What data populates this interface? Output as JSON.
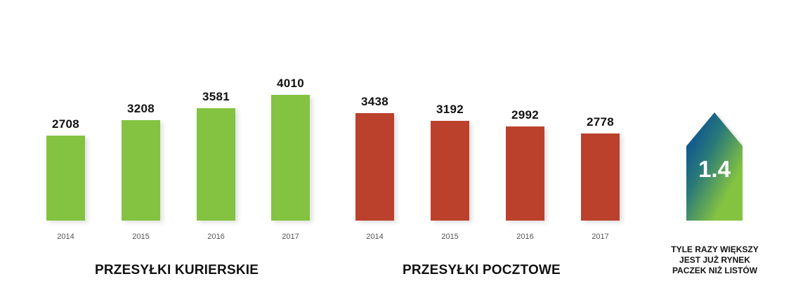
{
  "chart_data": [
    {
      "type": "bar",
      "title": "PRZESYŁKI KURIERSKIE",
      "categories": [
        "2014",
        "2015",
        "2016",
        "2017"
      ],
      "values": [
        2708,
        3208,
        3581,
        4010
      ],
      "color": "#84c341",
      "xlabel": "",
      "ylabel": "",
      "grid": false,
      "data_labels": true
    },
    {
      "type": "bar",
      "title": "PRZESYŁKI POCZTOWE",
      "categories": [
        "2014",
        "2015",
        "2016",
        "2017"
      ],
      "values": [
        3438,
        3192,
        2992,
        2778
      ],
      "color": "#bb412d",
      "xlabel": "",
      "ylabel": "",
      "grid": false,
      "data_labels": true
    }
  ],
  "courier": {
    "title": "PRZESYŁKI KURIERSKIE",
    "bars": [
      {
        "year": "2014",
        "value": "2708"
      },
      {
        "year": "2015",
        "value": "3208"
      },
      {
        "year": "2016",
        "value": "3581"
      },
      {
        "year": "2017",
        "value": "4010"
      }
    ]
  },
  "postal": {
    "title": "PRZESYŁKI POCZTOWE",
    "bars": [
      {
        "year": "2014",
        "value": "3438"
      },
      {
        "year": "2015",
        "value": "3192"
      },
      {
        "year": "2016",
        "value": "2992"
      },
      {
        "year": "2017",
        "value": "2778"
      }
    ]
  },
  "ratio": {
    "value": "1.4",
    "caption": [
      "TYLE RAZY WIĘKSZY",
      "JEST JUŻ RYNEK",
      "PACZEK NIŻ LISTÓW"
    ],
    "gradient_top": "#0a4f94",
    "gradient_bottom": "#84c341"
  },
  "colors": {
    "courier": "#84c341",
    "postal": "#bb412d"
  }
}
